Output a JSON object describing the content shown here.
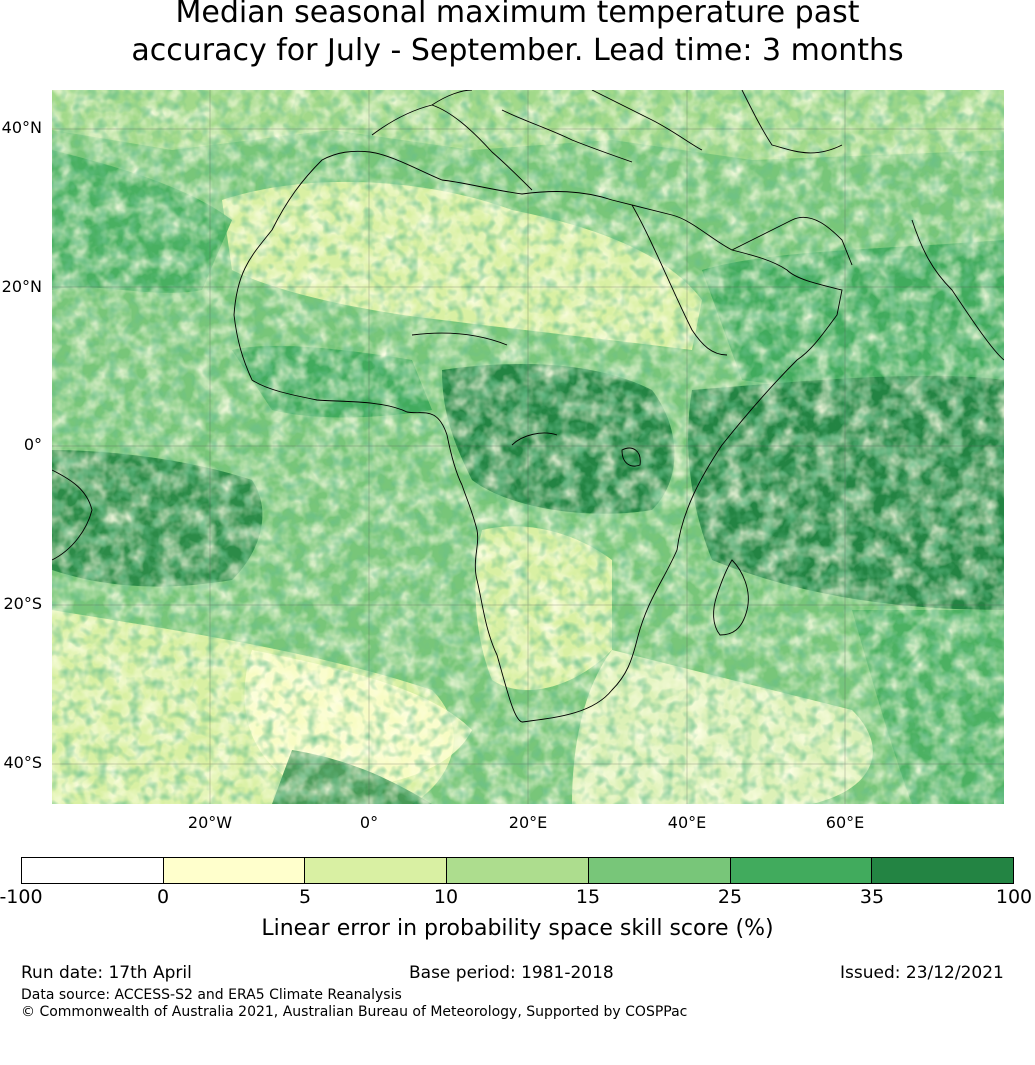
{
  "title": {
    "line1": "Median seasonal maximum temperature past",
    "line2": "accuracy for July - September. Lead time: 3 months"
  },
  "map": {
    "lat_labels": [
      "40°N",
      "20°N",
      "0°",
      "20°S",
      "40°S"
    ],
    "lon_labels": [
      "20°W",
      "0°",
      "20°E",
      "40°E",
      "60°E"
    ],
    "gridlines": true,
    "coastlines": true
  },
  "colorbar": {
    "ticks": [
      "-100",
      "0",
      "5",
      "10",
      "15",
      "25",
      "35",
      "100"
    ],
    "colors": [
      "#ffffff",
      "#ffffcc",
      "#d9f0a3",
      "#addd8e",
      "#78c679",
      "#41ab5d",
      "#238443"
    ],
    "label": "Linear error in probability space skill score (%)"
  },
  "footer": {
    "run_date": "Run date: 17th April",
    "base_period": "Base period: 1981-2018",
    "issued": "Issued: 23/12/2021",
    "data_source": "Data source: ACCESS-S2 and ERA5 Climate Reanalysis",
    "copyright": "© Commonwealth of Australia 2021, Australian Bureau of Meteorology, Supported by COSPPac"
  }
}
